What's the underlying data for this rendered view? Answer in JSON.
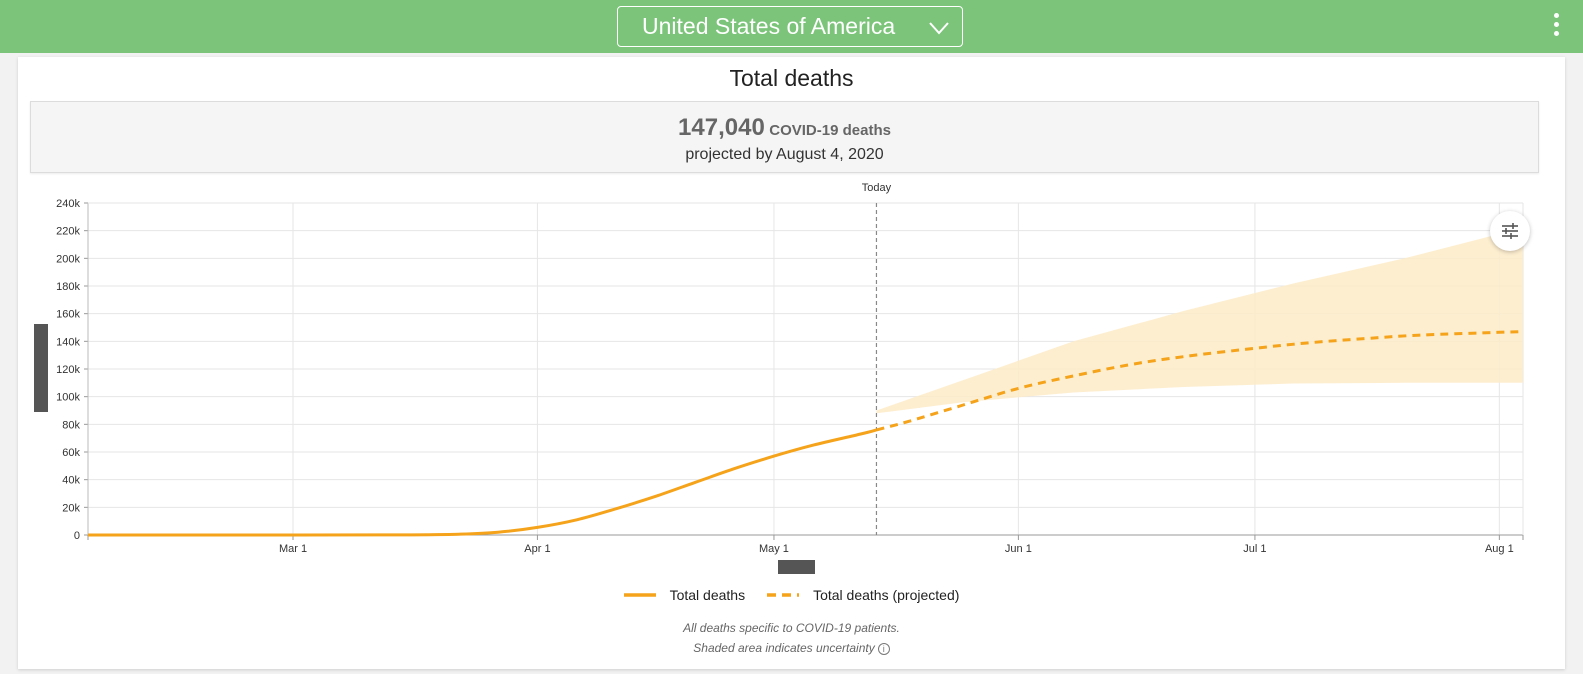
{
  "header": {
    "location": "United States of America",
    "menu_icon": "more-vertical-icon",
    "dropdown_icon": "chevron-down-icon"
  },
  "card": {
    "title": "Total deaths",
    "summary_number": "147,040",
    "summary_unit": "COVID-19 deaths",
    "summary_sub": "projected by August 4, 2020"
  },
  "chart_data": {
    "type": "line",
    "title": "",
    "xlabel": "",
    "ylabel": "",
    "x_ticks": [
      "Mar 1",
      "Apr 1",
      "May 1",
      "Jun 1",
      "Jul 1",
      "Aug 1"
    ],
    "x_range": [
      "2020-02-04",
      "2020-08-04"
    ],
    "y_ticks": [
      "0",
      "20k",
      "40k",
      "60k",
      "80k",
      "100k",
      "120k",
      "140k",
      "160k",
      "180k",
      "200k",
      "220k",
      "240k"
    ],
    "ylim": [
      0,
      240000
    ],
    "grid": true,
    "today_label": "Today",
    "today_date": "2020-05-14",
    "series": [
      {
        "name": "Total deaths",
        "style": "solid",
        "color": "#f5a31a",
        "points": [
          [
            "2020-02-04",
            0
          ],
          [
            "2020-03-01",
            0
          ],
          [
            "2020-03-15",
            100
          ],
          [
            "2020-03-22",
            600
          ],
          [
            "2020-03-27",
            2000
          ],
          [
            "2020-04-01",
            5500
          ],
          [
            "2020-04-06",
            11000
          ],
          [
            "2020-04-11",
            19000
          ],
          [
            "2020-04-16",
            28000
          ],
          [
            "2020-04-21",
            38000
          ],
          [
            "2020-04-26",
            48000
          ],
          [
            "2020-05-01",
            57000
          ],
          [
            "2020-05-06",
            65000
          ],
          [
            "2020-05-12",
            73000
          ],
          [
            "2020-05-14",
            76000
          ]
        ]
      },
      {
        "name": "Total deaths (projected)",
        "style": "dashed",
        "color": "#f5a31a",
        "points": [
          [
            "2020-05-14",
            76000
          ],
          [
            "2020-05-18",
            82000
          ],
          [
            "2020-05-25",
            94000
          ],
          [
            "2020-06-01",
            106000
          ],
          [
            "2020-06-08",
            115000
          ],
          [
            "2020-06-15",
            123000
          ],
          [
            "2020-06-22",
            129000
          ],
          [
            "2020-07-01",
            135000
          ],
          [
            "2020-07-08",
            139000
          ],
          [
            "2020-07-15",
            142000
          ],
          [
            "2020-07-22",
            144500
          ],
          [
            "2020-08-01",
            146500
          ],
          [
            "2020-08-04",
            147040
          ]
        ]
      }
    ],
    "uncertainty_band": {
      "color": "#fdebc8",
      "upper": [
        [
          "2020-05-14",
          90000
        ],
        [
          "2020-05-25",
          112000
        ],
        [
          "2020-06-08",
          140000
        ],
        [
          "2020-06-22",
          162000
        ],
        [
          "2020-07-06",
          182000
        ],
        [
          "2020-07-20",
          200000
        ],
        [
          "2020-08-04",
          222000
        ]
      ],
      "lower": [
        [
          "2020-05-14",
          88000
        ],
        [
          "2020-05-25",
          96000
        ],
        [
          "2020-06-08",
          103000
        ],
        [
          "2020-06-22",
          107000
        ],
        [
          "2020-07-06",
          109500
        ],
        [
          "2020-07-20",
          110000
        ],
        [
          "2020-08-04",
          110000
        ]
      ]
    },
    "legend": [
      "Total deaths",
      "Total deaths (projected)"
    ],
    "legend_position": "bottom"
  },
  "notes": {
    "line1": "All deaths specific to COVID-19 patients.",
    "line2": "Shaded area indicates uncertainty"
  },
  "controls": {
    "settings_icon": "sliders-icon",
    "info_icon": "info-icon"
  }
}
